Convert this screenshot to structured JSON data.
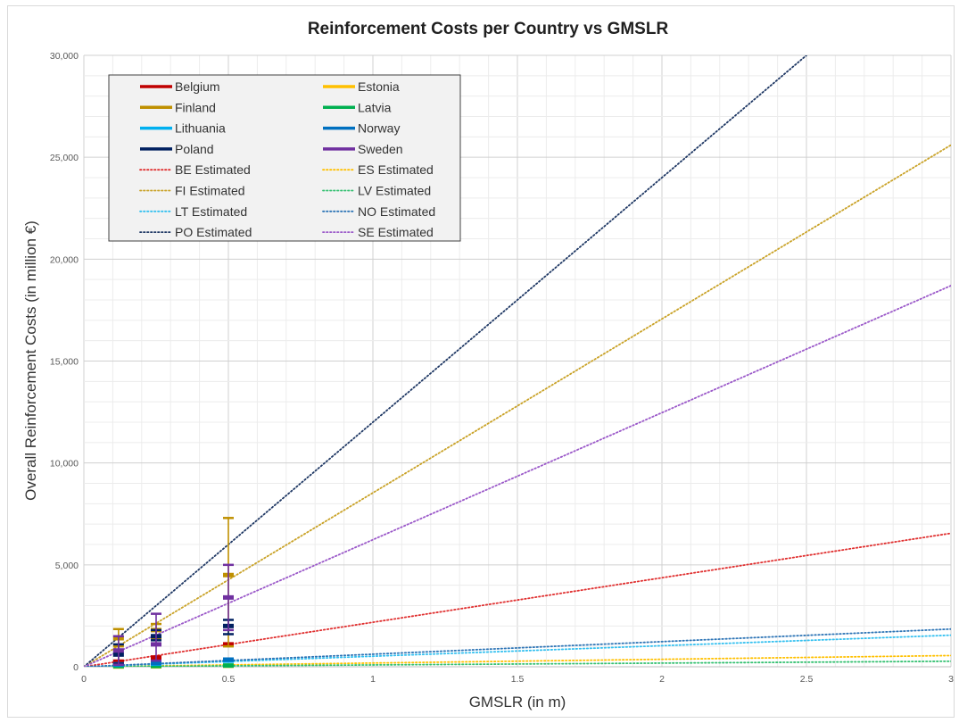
{
  "chart_data": {
    "type": "line",
    "title": "Reinforcement Costs per Country vs GMSLR",
    "xlabel": "GMSLR (in m)",
    "ylabel": "Overall Reinforcement Costs (in million €)",
    "xlim": [
      0,
      3
    ],
    "ylim": [
      0,
      30000
    ],
    "x_ticks": [
      {
        "value": 0,
        "label": "0"
      },
      {
        "value": 0.5,
        "label": "0.5"
      },
      {
        "value": 1,
        "label": "1"
      },
      {
        "value": 1.5,
        "label": "1.5"
      },
      {
        "value": 2,
        "label": "2"
      },
      {
        "value": 2.5,
        "label": "2.5"
      },
      {
        "value": 3,
        "label": "3"
      }
    ],
    "y_ticks": [
      {
        "value": 0,
        "label": "0"
      },
      {
        "value": 5000,
        "label": "5,000"
      },
      {
        "value": 10000,
        "label": "10,000"
      },
      {
        "value": 15000,
        "label": "15,000"
      },
      {
        "value": 20000,
        "label": "20,000"
      },
      {
        "value": 25000,
        "label": "25,000"
      },
      {
        "value": 30000,
        "label": "30,000"
      }
    ],
    "grid": true,
    "legend_position": "top-left",
    "series": [
      {
        "name": "Belgium",
        "color": "#c00000",
        "style": "solid",
        "points": [
          {
            "x": 0.12,
            "y": 250,
            "low": 200,
            "high": 300
          },
          {
            "x": 0.25,
            "y": 450,
            "low": 400,
            "high": 500
          },
          {
            "x": 0.5,
            "y": 1100,
            "low": 1050,
            "high": 1150
          }
        ]
      },
      {
        "name": "Estonia",
        "color": "#ffc000",
        "style": "solid",
        "points": [
          {
            "x": 0.12,
            "y": 10,
            "low": 0,
            "high": 20
          },
          {
            "x": 0.25,
            "y": 20,
            "low": 10,
            "high": 30
          },
          {
            "x": 0.5,
            "y": 50,
            "low": 30,
            "high": 70
          }
        ]
      },
      {
        "name": "Finland",
        "color": "#bf9000",
        "style": "solid",
        "points": [
          {
            "x": 0.12,
            "y": 1400,
            "low": 1000,
            "high": 1850
          },
          {
            "x": 0.25,
            "y": 1800,
            "low": 1400,
            "high": 2100
          },
          {
            "x": 0.5,
            "y": 4500,
            "low": 1000,
            "high": 7300
          }
        ]
      },
      {
        "name": "Latvia",
        "color": "#00b050",
        "style": "solid",
        "points": [
          {
            "x": 0.12,
            "y": 30,
            "low": 10,
            "high": 50
          },
          {
            "x": 0.25,
            "y": 40,
            "low": 20,
            "high": 60
          },
          {
            "x": 0.5,
            "y": 60,
            "low": 40,
            "high": 80
          }
        ]
      },
      {
        "name": "Lithuania",
        "color": "#00b0f0",
        "style": "solid",
        "points": [
          {
            "x": 0.12,
            "y": 100,
            "low": 80,
            "high": 120
          },
          {
            "x": 0.25,
            "y": 150,
            "low": 120,
            "high": 180
          },
          {
            "x": 0.5,
            "y": 300,
            "low": 250,
            "high": 350
          }
        ]
      },
      {
        "name": "Norway",
        "color": "#0070c0",
        "style": "solid",
        "points": [
          {
            "x": 0.12,
            "y": 120,
            "low": 100,
            "high": 140
          },
          {
            "x": 0.25,
            "y": 180,
            "low": 150,
            "high": 210
          },
          {
            "x": 0.5,
            "y": 350,
            "low": 300,
            "high": 400
          }
        ]
      },
      {
        "name": "Poland",
        "color": "#002060",
        "style": "solid",
        "points": [
          {
            "x": 0.12,
            "y": 600,
            "low": 150,
            "high": 1100
          },
          {
            "x": 0.25,
            "y": 1500,
            "low": 1300,
            "high": 1800
          },
          {
            "x": 0.5,
            "y": 2000,
            "low": 1600,
            "high": 2300
          }
        ]
      },
      {
        "name": "Sweden",
        "color": "#7030a0",
        "style": "solid",
        "points": [
          {
            "x": 0.12,
            "y": 800,
            "low": 100,
            "high": 1500
          },
          {
            "x": 0.25,
            "y": 1100,
            "low": 300,
            "high": 2600
          },
          {
            "x": 0.5,
            "y": 3400,
            "low": 1800,
            "high": 5000
          }
        ]
      },
      {
        "name": "BE Estimated",
        "color": "#e03030",
        "style": "dotted",
        "fit": [
          [
            0,
            0
          ],
          [
            3,
            6550
          ]
        ]
      },
      {
        "name": "ES Estimated",
        "color": "#ffc000",
        "style": "dotted",
        "fit": [
          [
            0,
            0
          ],
          [
            3,
            550
          ]
        ]
      },
      {
        "name": "FI Estimated",
        "color": "#c9a227",
        "style": "dotted",
        "fit": [
          [
            0,
            0
          ],
          [
            3,
            25600
          ]
        ]
      },
      {
        "name": "LV Estimated",
        "color": "#33c070",
        "style": "dotted",
        "fit": [
          [
            0,
            0
          ],
          [
            3,
            270
          ]
        ]
      },
      {
        "name": "LT Estimated",
        "color": "#33c0f0",
        "style": "dotted",
        "fit": [
          [
            0,
            0
          ],
          [
            3,
            1550
          ]
        ]
      },
      {
        "name": "NO Estimated",
        "color": "#2e75b6",
        "style": "dotted",
        "fit": [
          [
            0,
            0
          ],
          [
            3,
            1850
          ]
        ]
      },
      {
        "name": "PO Estimated",
        "color": "#1f3864",
        "style": "dotted",
        "fit": [
          [
            0,
            0
          ],
          [
            2.5,
            30000
          ]
        ]
      },
      {
        "name": "SE Estimated",
        "color": "#9b59c9",
        "style": "dotted",
        "fit": [
          [
            0,
            0
          ],
          [
            3,
            18700
          ]
        ]
      }
    ]
  }
}
